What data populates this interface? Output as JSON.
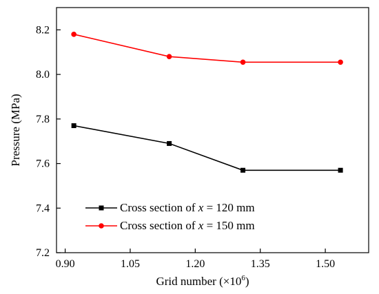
{
  "chart_data": {
    "type": "line",
    "xlabel": "Grid number (×10",
    "xlabel_sup": "6",
    "xlabel_close": ")",
    "ylabel": "Pressure (MPa)",
    "xlim": [
      0.88,
      1.6
    ],
    "ylim": [
      7.2,
      8.3
    ],
    "x_ticks": [
      0.9,
      1.05,
      1.2,
      1.35,
      1.5
    ],
    "x_tick_labels": [
      "0.90",
      "1.05",
      "1.20",
      "1.35",
      "1.50"
    ],
    "y_ticks": [
      7.2,
      7.4,
      7.6,
      7.8,
      8.0,
      8.2
    ],
    "y_tick_labels": [
      "7.2",
      "7.4",
      "7.6",
      "7.8",
      "8.0",
      "8.2"
    ],
    "grid": false,
    "legend_position": "bottom-left",
    "x": [
      0.92,
      1.14,
      1.31,
      1.535
    ],
    "series": [
      {
        "name": "Cross section of x = 120 mm",
        "label_prefix": "Cross section of ",
        "label_var": "x",
        "label_suffix": " = 120 mm",
        "color": "#000000",
        "marker": "square",
        "values": [
          7.77,
          7.69,
          7.57,
          7.57
        ]
      },
      {
        "name": "Cross section of x = 150 mm",
        "label_prefix": "Cross section of ",
        "label_var": "x",
        "label_suffix": " = 150 mm",
        "color": "#ff0000",
        "marker": "circle",
        "values": [
          8.18,
          8.08,
          8.055,
          8.055
        ]
      }
    ]
  }
}
